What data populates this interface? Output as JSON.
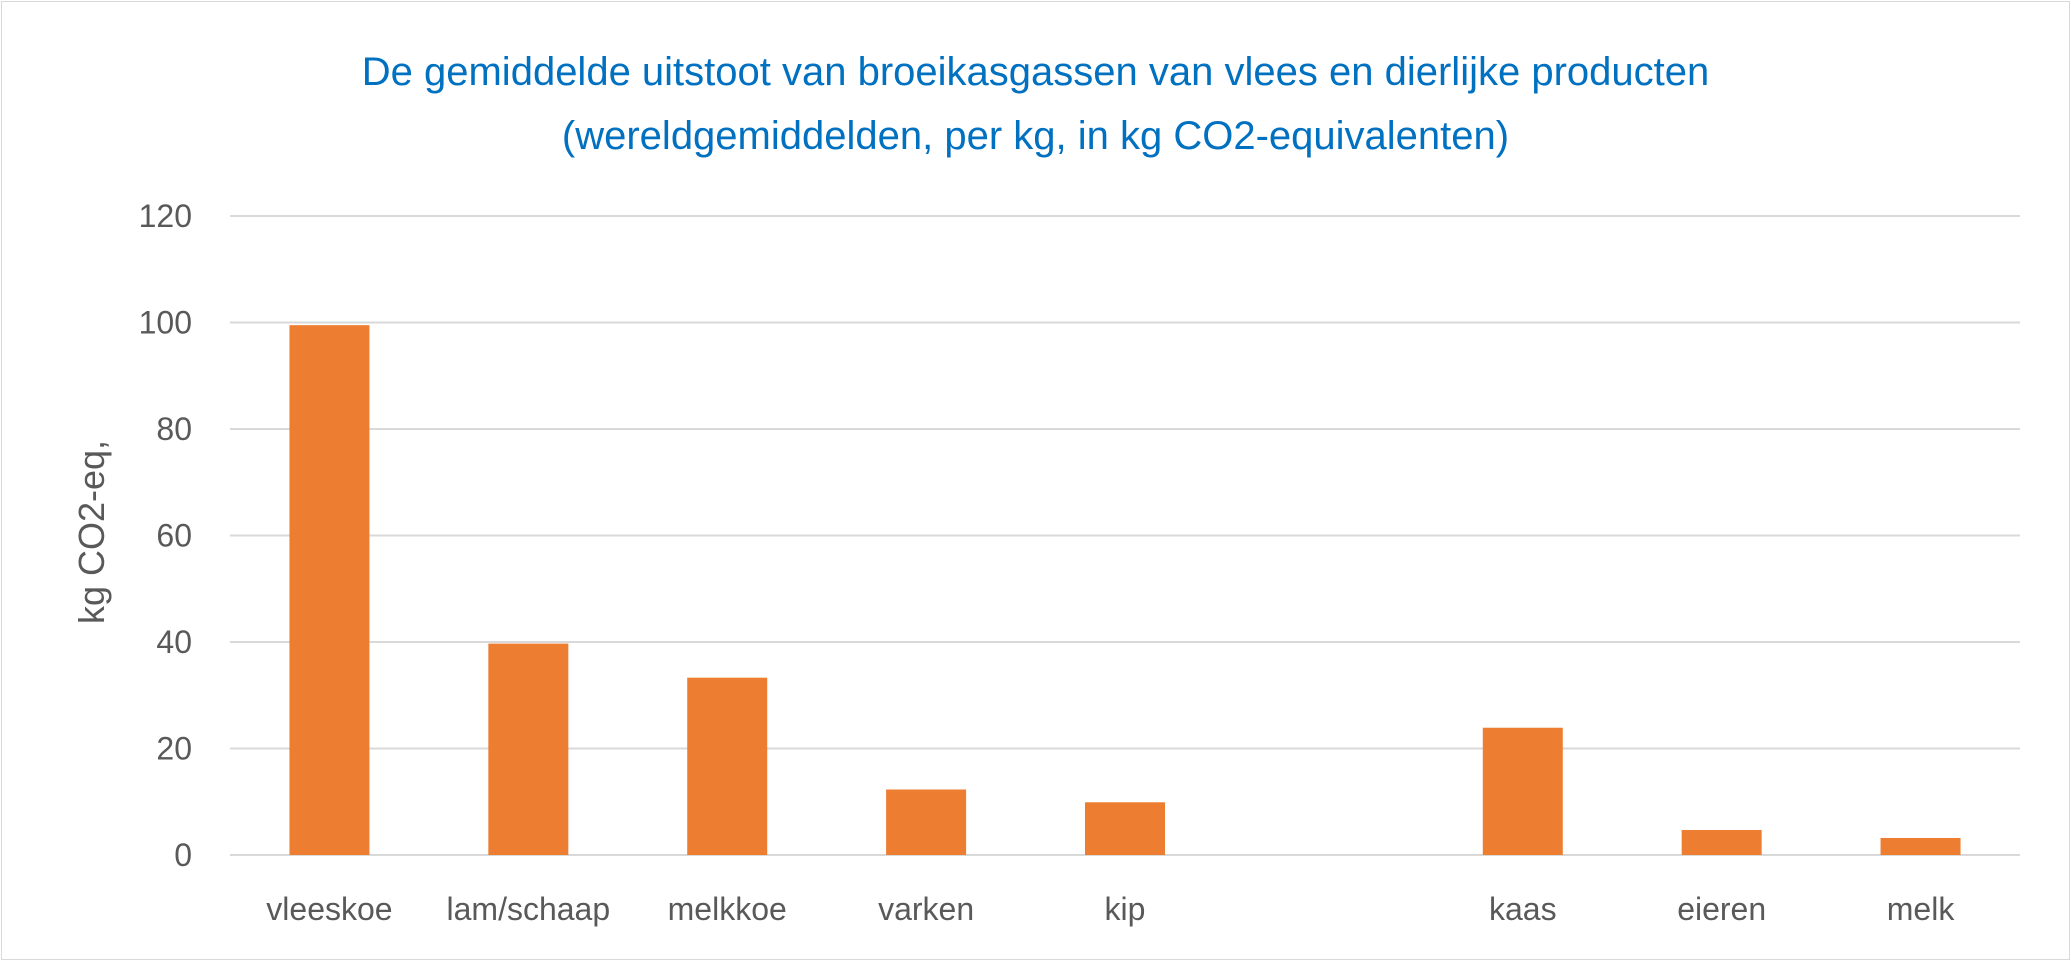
{
  "chart_data": {
    "type": "bar",
    "title_lines": [
      "De gemiddelde uitstoot van broeikasgassen van vlees en dierlijke producten",
      "(wereldgemiddelden, per kg, in kg CO2-equivalenten)"
    ],
    "xlabel": "",
    "ylabel": "kg CO2-eq,",
    "categories": [
      "vleeskoe",
      "lam/schaap",
      "melkkoe",
      "varken",
      "kip",
      "",
      "kaas",
      "eieren",
      "melk"
    ],
    "values": [
      99.5,
      39.7,
      33.3,
      12.3,
      9.9,
      null,
      23.9,
      4.7,
      3.2
    ],
    "ylim": [
      0,
      120
    ],
    "yticks": [
      0,
      20,
      40,
      60,
      80,
      100,
      120
    ],
    "grid": true,
    "legend": "none",
    "bar_color": "#ed7d31",
    "grid_color": "#d9d9d9",
    "title_color": "#0070c0"
  }
}
